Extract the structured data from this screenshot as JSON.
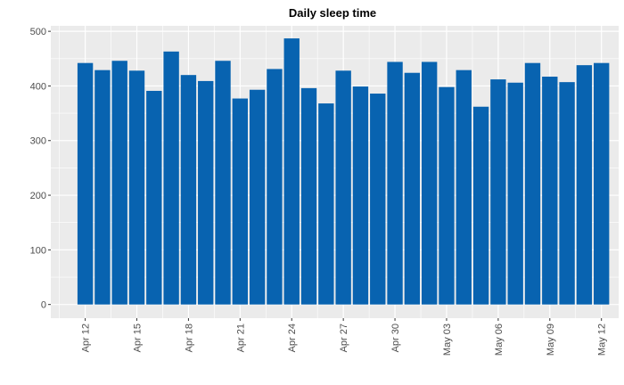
{
  "chart_data": {
    "type": "bar",
    "title": "Daily sleep time",
    "xlabel": "",
    "ylabel": "",
    "x_tick_labels": [
      "Apr 12",
      "Apr 15",
      "Apr 18",
      "Apr 21",
      "Apr 24",
      "Apr 27",
      "Apr 30",
      "May 03",
      "May 06",
      "May 09",
      "May 12"
    ],
    "x_tick_dates": [
      "2016-04-12",
      "2016-04-15",
      "2016-04-18",
      "2016-04-21",
      "2016-04-24",
      "2016-04-27",
      "2016-04-30",
      "2016-05-03",
      "2016-05-06",
      "2016-05-09",
      "2016-05-12"
    ],
    "y_ticks": [
      0,
      100,
      200,
      300,
      400,
      500
    ],
    "ylim": [
      -25,
      510
    ],
    "xlim": [
      "2016-04-10",
      "2016-05-13"
    ],
    "grid": true,
    "bar_color": "#0863B0",
    "panel_color": "#EBEBEB",
    "grid_color": "#FFFFFF",
    "categories": [
      "2016-04-12",
      "2016-04-13",
      "2016-04-14",
      "2016-04-15",
      "2016-04-16",
      "2016-04-17",
      "2016-04-18",
      "2016-04-19",
      "2016-04-20",
      "2016-04-21",
      "2016-04-22",
      "2016-04-23",
      "2016-04-24",
      "2016-04-25",
      "2016-04-26",
      "2016-04-27",
      "2016-04-28",
      "2016-04-29",
      "2016-04-30",
      "2016-05-01",
      "2016-05-02",
      "2016-05-03",
      "2016-05-04",
      "2016-05-05",
      "2016-05-06",
      "2016-05-07",
      "2016-05-08",
      "2016-05-09",
      "2016-05-10",
      "2016-05-11",
      "2016-05-12"
    ],
    "values": [
      442,
      429,
      446,
      428,
      391,
      463,
      420,
      409,
      446,
      377,
      393,
      431,
      487,
      396,
      368,
      428,
      399,
      386,
      444,
      424,
      444,
      398,
      429,
      362,
      412,
      406,
      442,
      417,
      407,
      438,
      442
    ]
  }
}
